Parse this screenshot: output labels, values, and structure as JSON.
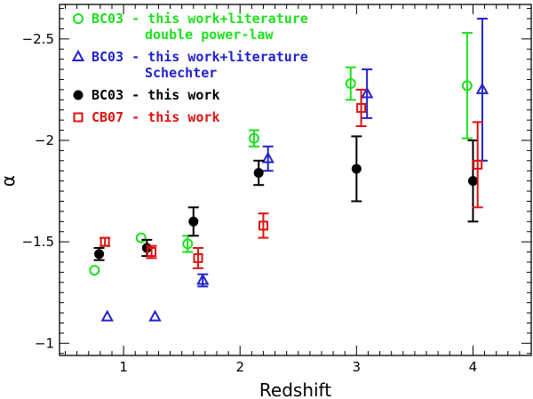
{
  "chart_data": {
    "type": "scatter",
    "title": "",
    "xlabel": "Redshift",
    "ylabel": "α",
    "xlim": [
      0.45,
      4.5
    ],
    "ylim": [
      -0.94,
      -2.67
    ],
    "y_inverted": true,
    "x_ticks": [
      1,
      2,
      3,
      4
    ],
    "x_tick_labels": [
      "1",
      "2",
      "3",
      "4"
    ],
    "y_ticks": [
      -1,
      -1.5,
      -2,
      -2.5
    ],
    "y_tick_labels": [
      "−1",
      "−1.5",
      "−2",
      "−2.5"
    ],
    "grid": false,
    "legend_position": "top-left",
    "series": [
      {
        "name": "BC03 - this work+literature double power-law",
        "legend_lines": [
          "BC03 - this work+literature",
          "double power-law"
        ],
        "marker": "open-circle",
        "color": "#1ee01e",
        "points": [
          {
            "x": 0.75,
            "y": -1.36,
            "err": 0.0
          },
          {
            "x": 1.15,
            "y": -1.52,
            "err": 0.0
          },
          {
            "x": 1.55,
            "y": -1.49,
            "err": 0.04
          },
          {
            "x": 2.12,
            "y": -2.01,
            "err": 0.04
          },
          {
            "x": 2.95,
            "y": -2.28,
            "err": 0.08
          },
          {
            "x": 3.95,
            "y": -2.27,
            "err": 0.26
          }
        ]
      },
      {
        "name": "BC03 - this work+literature Schechter",
        "legend_lines": [
          "BC03 - this work+literature",
          "Schechter"
        ],
        "marker": "open-triangle",
        "color": "#2222cc",
        "points": [
          {
            "x": 0.86,
            "y": -1.13,
            "err": 0.0
          },
          {
            "x": 1.27,
            "y": -1.13,
            "err": 0.0
          },
          {
            "x": 1.68,
            "y": -1.31,
            "err": 0.03
          },
          {
            "x": 2.24,
            "y": -1.91,
            "err": 0.06
          },
          {
            "x": 3.09,
            "y": -2.23,
            "err": 0.12
          },
          {
            "x": 4.08,
            "y": -2.25,
            "err": 0.35
          }
        ]
      },
      {
        "name": "BC03 - this work",
        "legend_lines": [
          "BC03 - this work"
        ],
        "marker": "filled-circle",
        "color": "#000000",
        "points": [
          {
            "x": 0.79,
            "y": -1.44,
            "err": 0.03
          },
          {
            "x": 1.2,
            "y": -1.47,
            "err": 0.04
          },
          {
            "x": 1.6,
            "y": -1.6,
            "err": 0.07
          },
          {
            "x": 2.16,
            "y": -1.84,
            "err": 0.06
          },
          {
            "x": 3.0,
            "y": -1.86,
            "err": 0.16
          },
          {
            "x": 4.0,
            "y": -1.8,
            "err": 0.2
          }
        ]
      },
      {
        "name": "CB07 - this work",
        "legend_lines": [
          "CB07 - this work"
        ],
        "marker": "open-square",
        "color": "#dd1111",
        "points": [
          {
            "x": 0.84,
            "y": -1.5,
            "err": 0.02
          },
          {
            "x": 1.24,
            "y": -1.45,
            "err": 0.03
          },
          {
            "x": 1.64,
            "y": -1.42,
            "err": 0.05
          },
          {
            "x": 2.2,
            "y": -1.58,
            "err": 0.06
          },
          {
            "x": 3.04,
            "y": -2.16,
            "err": 0.09
          },
          {
            "x": 4.04,
            "y": -1.88,
            "err": 0.21
          }
        ]
      }
    ]
  }
}
